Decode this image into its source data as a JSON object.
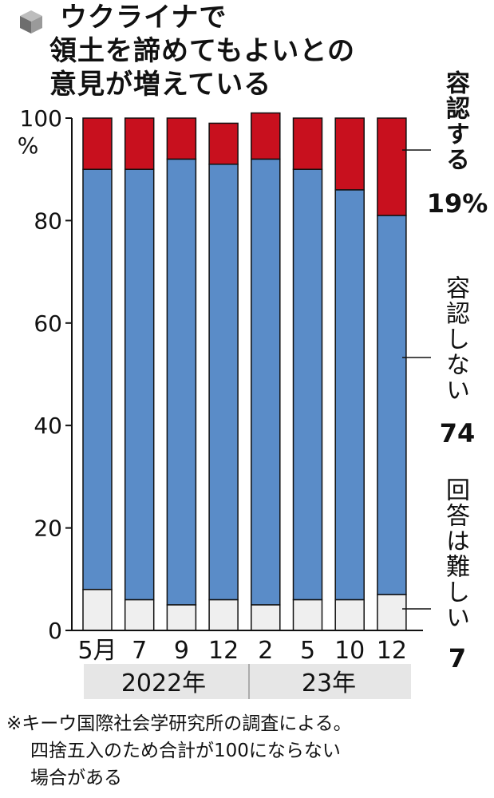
{
  "title": {
    "line1": "ウクライナで",
    "line2": "領土を諦めてもよいとの",
    "line3": "意見が増えている"
  },
  "y_axis": {
    "ticks": [
      "100",
      "80",
      "60",
      "40",
      "20",
      "0"
    ],
    "unit": "%"
  },
  "x_axis": {
    "ticks": [
      "5月",
      "7",
      "9",
      "12",
      "2",
      "5",
      "10",
      "12"
    ],
    "years": [
      "2022年",
      "23年"
    ]
  },
  "legend": {
    "accept_label": "容認する",
    "accept_value": "19%",
    "reject_label": "容認しない",
    "reject_value": "74",
    "hard_label": "回答は難しい",
    "hard_value": "7"
  },
  "notes": [
    "※キーウ国際社会学研究所の調査による。",
    "四捨五入のため合計が100にならない",
    "場合がある"
  ],
  "colors": {
    "accept": "#c8101e",
    "reject": "#5a8cc8",
    "hard": "#efefef",
    "year_band": "#e6e6e6"
  },
  "chart_data": {
    "type": "bar",
    "stacked": true,
    "categories": [
      "2022-05",
      "2022-07",
      "2022-09",
      "2022-12",
      "2023-02",
      "2023-05",
      "2023-10",
      "2023-12"
    ],
    "series": [
      {
        "name": "回答は難しい",
        "values": [
          8,
          6,
          5,
          6,
          5,
          6,
          6,
          7
        ]
      },
      {
        "name": "容認しない",
        "values": [
          82,
          84,
          87,
          85,
          87,
          84,
          80,
          74
        ]
      },
      {
        "name": "容認する",
        "values": [
          10,
          10,
          8,
          8,
          9,
          10,
          14,
          19
        ]
      }
    ],
    "ylim": [
      0,
      100
    ],
    "grid": false
  }
}
